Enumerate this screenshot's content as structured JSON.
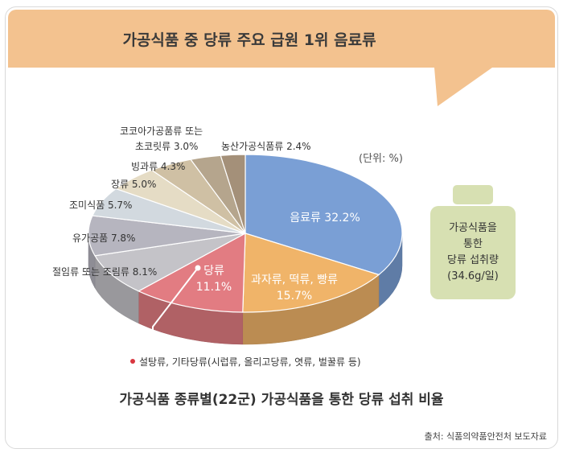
{
  "header": {
    "title": "가공식품 중 당류 주요 급원 1위 음료류"
  },
  "chart_data": {
    "type": "pie",
    "title": "가공식품 종류별(22군) 가공식품을 통한 당류 섭취 비율",
    "unit_label": "(단위: %)",
    "slices": [
      {
        "name": "음료류",
        "value": 32.2,
        "label": "음료류 32.2%",
        "color": "#7a9fd5"
      },
      {
        "name": "과자류, 떡류, 빵류",
        "value": 15.7,
        "label_lines": [
          "과자류, 떡류, 빵류",
          "15.7%"
        ],
        "color": "#f0b469"
      },
      {
        "name": "당류",
        "value": 11.1,
        "label_lines": [
          "당류",
          "11.1%"
        ],
        "color": "#e27c82"
      },
      {
        "name": "절임류 또는 조림류",
        "value": 8.1,
        "label": "절임류 또는 조림류 8.1%",
        "color": "#c4c3c8"
      },
      {
        "name": "유가공품",
        "value": 7.8,
        "label": "유가공품 7.8%",
        "color": "#b6b5bf"
      },
      {
        "name": "조미식품",
        "value": 5.7,
        "label": "조미식품 5.7%",
        "color": "#d2d9df"
      },
      {
        "name": "장류",
        "value": 5.0,
        "label": "장류 5.0%",
        "color": "#e5dcc5"
      },
      {
        "name": "빙과류",
        "value": 4.3,
        "label": "빙과류 4.3%",
        "color": "#cfc0a4"
      },
      {
        "name": "코코아가공품류 또는 초코릿류",
        "value": 3.0,
        "label_lines": [
          "코코아가공품류 또는",
          "초코릿류 3.0%"
        ],
        "color": "#b5a58d"
      },
      {
        "name": "농산가공식품류",
        "value": 2.4,
        "label": "농산가공식품류 2.4%",
        "color": "#a49079"
      }
    ],
    "callout": "설탕류, 기타당류(시럽류, 올리고당류, 엿류, 벌꿀류 등)"
  },
  "side_note": {
    "lines": [
      "가공식품을",
      "통한",
      "당류 섭취량",
      "(34.6g/일)"
    ]
  },
  "source": "출처: 식품의약품안전처 보도자료"
}
